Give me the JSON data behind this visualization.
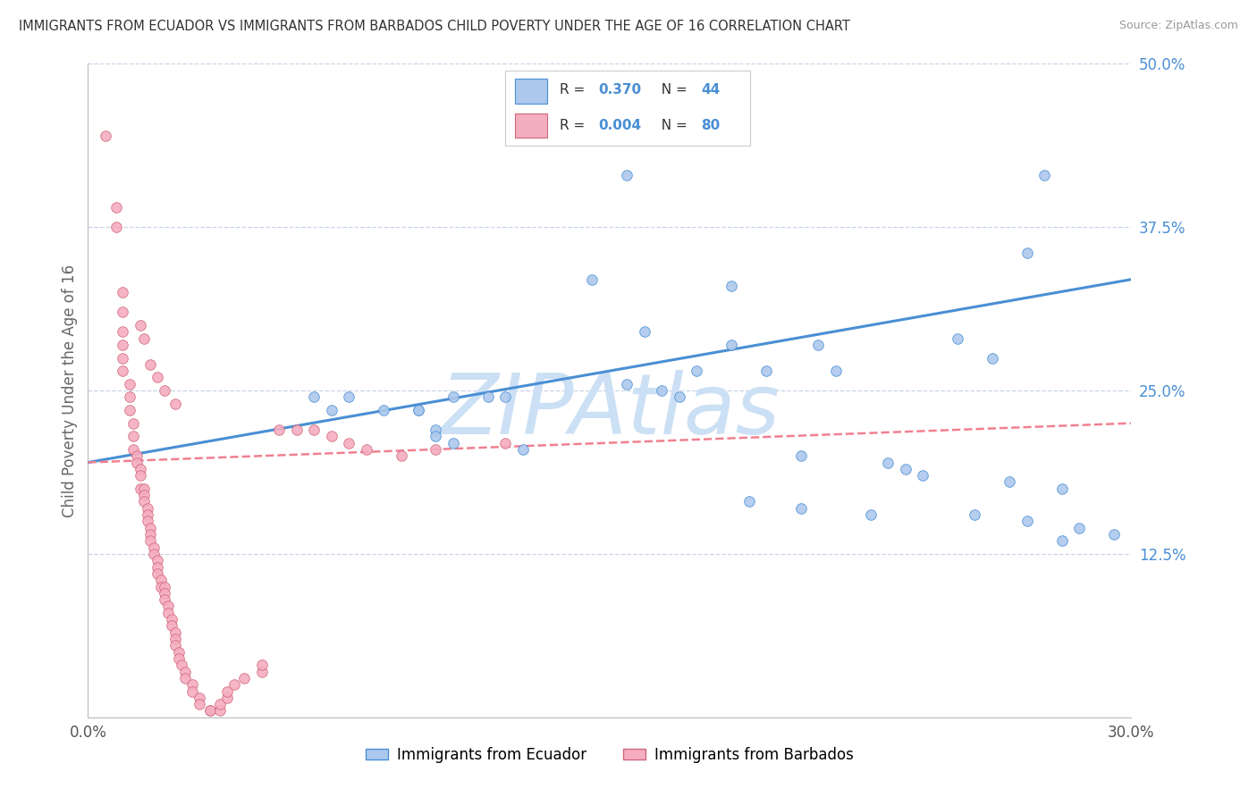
{
  "title": "IMMIGRANTS FROM ECUADOR VS IMMIGRANTS FROM BARBADOS CHILD POVERTY UNDER THE AGE OF 16 CORRELATION CHART",
  "source": "Source: ZipAtlas.com",
  "ylabel": "Child Poverty Under the Age of 16",
  "xlim": [
    0.0,
    0.3
  ],
  "ylim": [
    0.0,
    0.5
  ],
  "ecuador_R": 0.37,
  "ecuador_N": 44,
  "barbados_R": 0.004,
  "barbados_N": 80,
  "ecuador_color": "#adc8ed",
  "barbados_color": "#f5adc0",
  "ecuador_line_color": "#4a8fd4",
  "barbados_line_color": "#f08090",
  "watermark": "ZIPAtlas",
  "watermark_color": "#cce0f5",
  "background_color": "#ffffff",
  "grid_color": "#c8d4e8",
  "yticks_right": [
    0.0,
    0.125,
    0.25,
    0.375,
    0.5
  ],
  "yticklabels_right": [
    "",
    "12.5%",
    "25.0%",
    "37.5%",
    "50.0%"
  ],
  "ecuador_x": [
    0.155,
    0.275,
    0.155,
    0.27,
    0.145,
    0.185,
    0.16,
    0.185,
    0.21,
    0.25,
    0.26,
    0.195,
    0.215,
    0.175,
    0.155,
    0.165,
    0.17,
    0.105,
    0.115,
    0.12,
    0.065,
    0.075,
    0.07,
    0.085,
    0.095,
    0.095,
    0.1,
    0.1,
    0.105,
    0.125,
    0.205,
    0.23,
    0.235,
    0.24,
    0.265,
    0.28,
    0.19,
    0.205,
    0.225,
    0.255,
    0.27,
    0.285,
    0.295,
    0.28
  ],
  "ecuador_y": [
    0.465,
    0.415,
    0.415,
    0.355,
    0.335,
    0.33,
    0.295,
    0.285,
    0.285,
    0.29,
    0.275,
    0.265,
    0.265,
    0.265,
    0.255,
    0.25,
    0.245,
    0.245,
    0.245,
    0.245,
    0.245,
    0.245,
    0.235,
    0.235,
    0.235,
    0.235,
    0.22,
    0.215,
    0.21,
    0.205,
    0.2,
    0.195,
    0.19,
    0.185,
    0.18,
    0.175,
    0.165,
    0.16,
    0.155,
    0.155,
    0.15,
    0.145,
    0.14,
    0.135
  ],
  "barbados_x": [
    0.005,
    0.008,
    0.008,
    0.01,
    0.01,
    0.01,
    0.01,
    0.01,
    0.01,
    0.012,
    0.012,
    0.012,
    0.013,
    0.013,
    0.013,
    0.014,
    0.014,
    0.015,
    0.015,
    0.015,
    0.016,
    0.016,
    0.016,
    0.017,
    0.017,
    0.017,
    0.018,
    0.018,
    0.018,
    0.019,
    0.019,
    0.02,
    0.02,
    0.02,
    0.021,
    0.021,
    0.022,
    0.022,
    0.022,
    0.023,
    0.023,
    0.024,
    0.024,
    0.025,
    0.025,
    0.025,
    0.026,
    0.026,
    0.027,
    0.028,
    0.028,
    0.03,
    0.03,
    0.032,
    0.032,
    0.035,
    0.035,
    0.038,
    0.038,
    0.04,
    0.04,
    0.042,
    0.045,
    0.05,
    0.05,
    0.055,
    0.06,
    0.065,
    0.07,
    0.075,
    0.08,
    0.09,
    0.1,
    0.12,
    0.015,
    0.016,
    0.018,
    0.02,
    0.022,
    0.025
  ],
  "barbados_y": [
    0.445,
    0.39,
    0.375,
    0.325,
    0.31,
    0.295,
    0.285,
    0.275,
    0.265,
    0.255,
    0.245,
    0.235,
    0.225,
    0.215,
    0.205,
    0.2,
    0.195,
    0.19,
    0.185,
    0.175,
    0.175,
    0.17,
    0.165,
    0.16,
    0.155,
    0.15,
    0.145,
    0.14,
    0.135,
    0.13,
    0.125,
    0.12,
    0.115,
    0.11,
    0.105,
    0.1,
    0.1,
    0.095,
    0.09,
    0.085,
    0.08,
    0.075,
    0.07,
    0.065,
    0.06,
    0.055,
    0.05,
    0.045,
    0.04,
    0.035,
    0.03,
    0.025,
    0.02,
    0.015,
    0.01,
    0.005,
    0.005,
    0.005,
    0.01,
    0.015,
    0.02,
    0.025,
    0.03,
    0.035,
    0.04,
    0.22,
    0.22,
    0.22,
    0.215,
    0.21,
    0.205,
    0.2,
    0.205,
    0.21,
    0.3,
    0.29,
    0.27,
    0.26,
    0.25,
    0.24
  ]
}
